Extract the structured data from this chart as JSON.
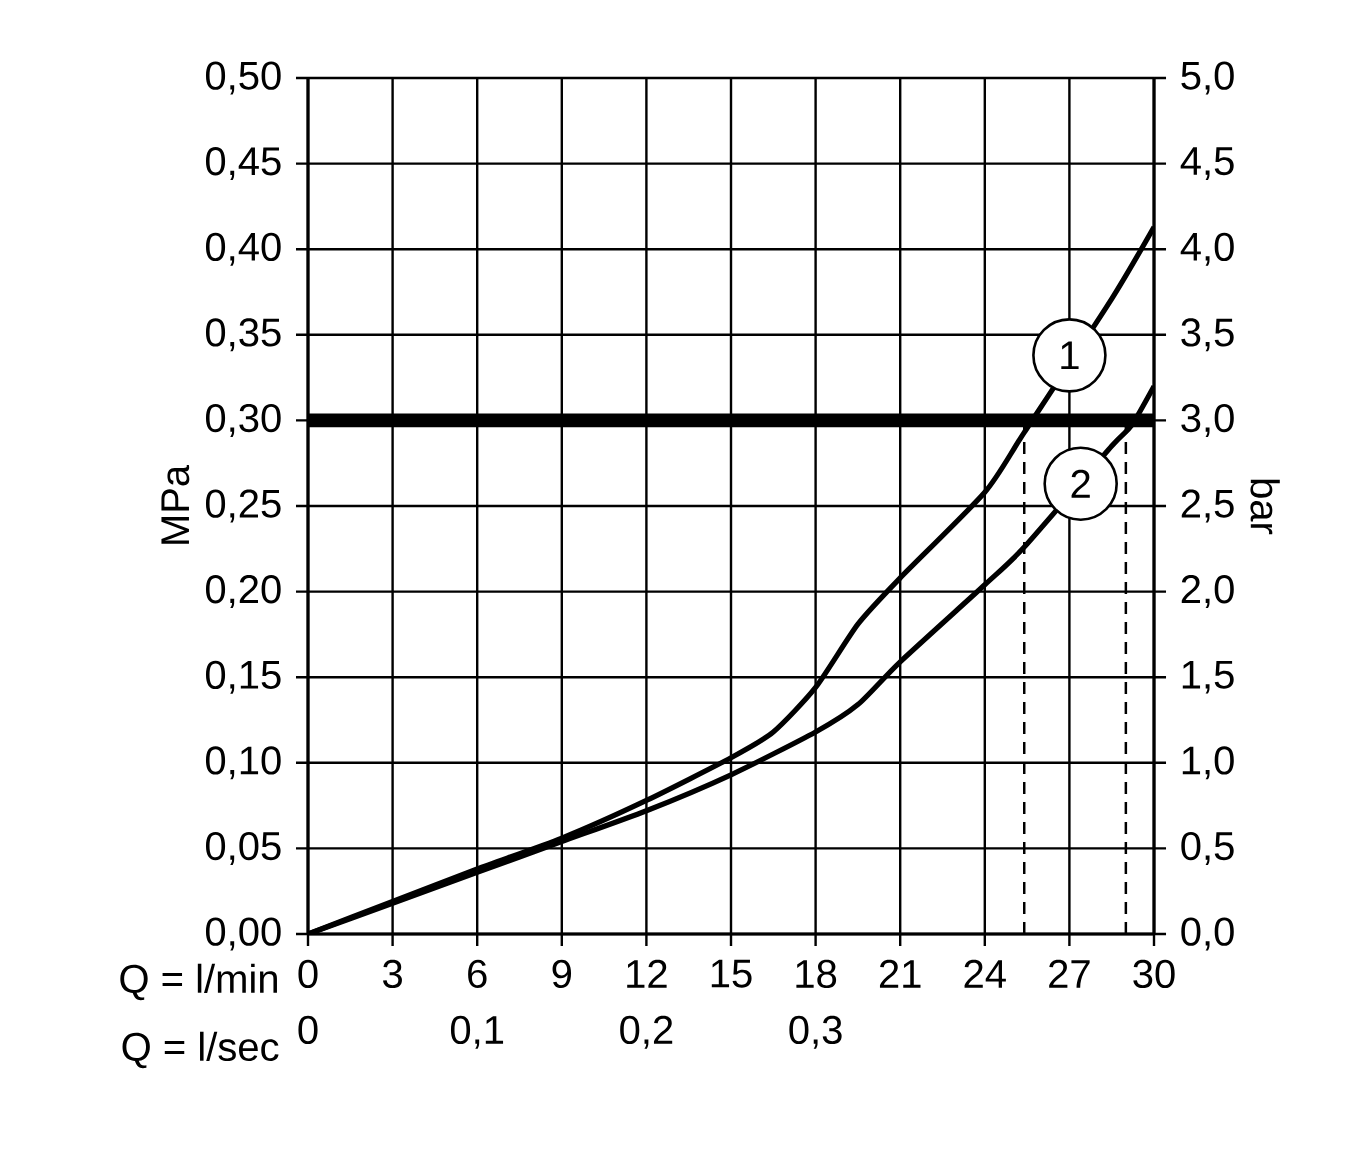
{
  "chart_data": {
    "type": "line",
    "xlabel": "Q = l/min",
    "ylabel": "MPa",
    "y2label": "bar",
    "x2label": "Q = l/sec",
    "xlim": [
      0,
      30
    ],
    "xticks": [
      0,
      3,
      6,
      9,
      12,
      15,
      18,
      21,
      24,
      27,
      30
    ],
    "x2lim": [
      0,
      0.5
    ],
    "x2ticks": [
      0,
      {
        "value": 0.1,
        "label": "0,1"
      },
      {
        "value": 0.2,
        "label": "0,2"
      },
      {
        "value": 0.3,
        "label": "0,3"
      }
    ],
    "ylim": [
      0,
      0.5
    ],
    "yticks": [
      {
        "value": 0,
        "label": "0,00"
      },
      {
        "value": 0.05,
        "label": "0,05"
      },
      {
        "value": 0.1,
        "label": "0,10"
      },
      {
        "value": 0.15,
        "label": "0,15"
      },
      {
        "value": 0.2,
        "label": "0,20"
      },
      {
        "value": 0.25,
        "label": "0,25"
      },
      {
        "value": 0.3,
        "label": "0,30"
      },
      {
        "value": 0.35,
        "label": "0,35"
      },
      {
        "value": 0.4,
        "label": "0,40"
      },
      {
        "value": 0.45,
        "label": "0,45"
      },
      {
        "value": 0.5,
        "label": "0,50"
      }
    ],
    "y2lim": [
      0,
      5
    ],
    "y2ticks": [
      {
        "value": 0,
        "label": "0,0"
      },
      {
        "value": 0.5,
        "label": "0,5"
      },
      {
        "value": 1,
        "label": "1,0"
      },
      {
        "value": 1.5,
        "label": "1,5"
      },
      {
        "value": 2,
        "label": "2,0"
      },
      {
        "value": 2.5,
        "label": "2,5"
      },
      {
        "value": 3,
        "label": "3,0"
      },
      {
        "value": 3.5,
        "label": "3,5"
      },
      {
        "value": 4,
        "label": "4,0"
      },
      {
        "value": 4.5,
        "label": "4,5"
      },
      {
        "value": 5,
        "label": "5,0"
      }
    ],
    "grid": true,
    "marker": "none",
    "line_style": "solid",
    "series": [
      {
        "color": "#000000",
        "x": [
          0,
          3,
          6,
          9,
          12,
          15,
          16.5,
          18,
          19.5,
          21,
          24,
          25.4,
          27,
          28.5,
          30
        ],
        "values": [
          0,
          0.019,
          0.038,
          0.056,
          0.078,
          0.103,
          0.118,
          0.144,
          0.181,
          0.208,
          0.258,
          0.293,
          null,
          0.371,
          0.413
        ]
      },
      {
        "color": "#000000",
        "x": [
          0,
          3,
          6,
          9,
          12,
          15,
          18,
          19.5,
          21,
          24,
          25.4,
          27,
          28.5,
          29.2,
          30
        ],
        "values": [
          0,
          0.018,
          0.036,
          0.054,
          0.072,
          0.093,
          0.118,
          0.134,
          0.159,
          0.204,
          0.226,
          null,
          0.285,
          0.297,
          0.32
        ]
      }
    ],
    "ref_lines": [
      {
        "axis": "y",
        "value": 0.3,
        "line_style": "solid",
        "color": "#000000"
      },
      {
        "axis": "x",
        "value": 25.4,
        "line_style": "dashed",
        "color": "#000000"
      },
      {
        "axis": "x",
        "value": 29.0,
        "line_style": "dashed",
        "color": "#000000"
      }
    ],
    "annotations": [
      {
        "text": "1",
        "x": 27,
        "y": 0.338
      },
      {
        "text": "2",
        "x": 27.4,
        "y": 0.263
      }
    ]
  }
}
